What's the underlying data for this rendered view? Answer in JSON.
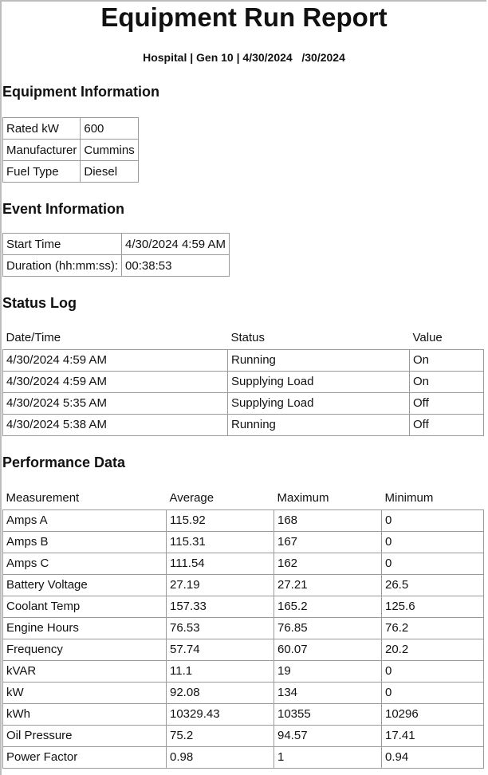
{
  "title": "Equipment Run Report",
  "subtitle": "Hospital | Gen 10 | 4/30/2024   /30/2024",
  "equipment": {
    "heading": "Equipment Information",
    "rows": [
      [
        "Rated kW",
        "600"
      ],
      [
        "Manufacturer",
        "Cummins"
      ],
      [
        "Fuel Type",
        "Diesel"
      ]
    ]
  },
  "event": {
    "heading": "Event Information",
    "rows": [
      [
        "Start Time",
        "4/30/2024 4:59 AM"
      ],
      [
        "Duration (hh:mm:ss):",
        "00:38:53"
      ]
    ]
  },
  "status_log": {
    "heading": "Status Log",
    "columns": [
      "Date/Time",
      "Status",
      "Value"
    ],
    "rows": [
      [
        "4/30/2024 4:59 AM",
        "Running",
        "On"
      ],
      [
        "4/30/2024 4:59 AM",
        "Supplying Load",
        "On"
      ],
      [
        "4/30/2024 5:35 AM",
        "Supplying Load",
        "Off"
      ],
      [
        "4/30/2024 5:38 AM",
        "Running",
        "Off"
      ]
    ]
  },
  "performance": {
    "heading": "Performance Data",
    "columns": [
      "Measurement",
      "Average",
      "Maximum",
      "Minimum"
    ],
    "rows": [
      [
        "Amps A",
        "115.92",
        "168",
        "0"
      ],
      [
        "Amps B",
        "115.31",
        "167",
        "0"
      ],
      [
        "Amps C",
        "111.54",
        "162",
        "0"
      ],
      [
        "Battery Voltage",
        "27.19",
        "27.21",
        "26.5"
      ],
      [
        "Coolant Temp",
        "157.33",
        "165.2",
        "125.6"
      ],
      [
        "Engine Hours",
        "76.53",
        "76.85",
        "76.2"
      ],
      [
        "Frequency",
        "57.74",
        "60.07",
        "20.2"
      ],
      [
        "kVAR",
        "11.1",
        "19",
        "0"
      ],
      [
        "kW",
        "92.08",
        "134",
        "0"
      ],
      [
        "kWh",
        "10329.43",
        "10355",
        "10296"
      ],
      [
        "Oil Pressure",
        "75.2",
        "94.57",
        "17.41"
      ],
      [
        "Power Factor",
        "0.98",
        "1",
        "0.94"
      ]
    ]
  }
}
